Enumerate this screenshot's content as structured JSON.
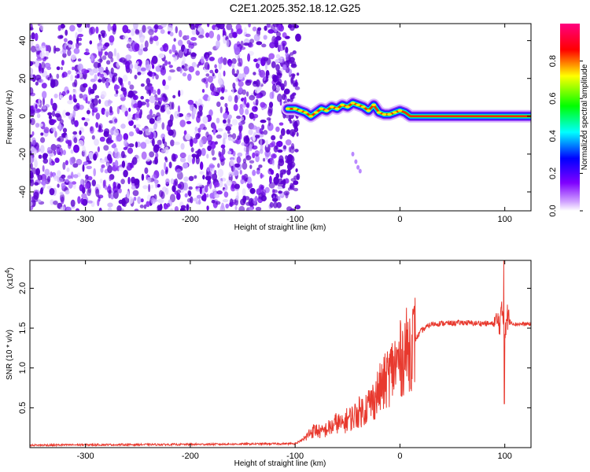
{
  "title": "C2E1.2025.352.18.12.G25",
  "chart_data": [
    {
      "type": "heatmap",
      "xlabel": "Height of straight line (km)",
      "ylabel": "Frequency (Hz)",
      "xlim": [
        -353,
        125
      ],
      "ylim": [
        -50,
        49
      ],
      "x_ticks": [
        -300,
        -200,
        -100,
        0,
        100
      ],
      "x_tick_labels": [
        "-300",
        "-200",
        "-100",
        "0",
        "100"
      ],
      "y_ticks": [
        -40,
        -20,
        0,
        20,
        40
      ],
      "y_tick_labels": [
        "-40",
        "-20",
        "0",
        "20",
        "40"
      ],
      "noise_region_x": [
        -353,
        -97
      ],
      "ridge": {
        "x": [
          -107,
          -100,
          -95,
          -90,
          -85,
          -80,
          -75,
          -70,
          -65,
          -60,
          -55,
          -50,
          -45,
          -40,
          -35,
          -30,
          -25,
          -20,
          -15,
          -10,
          -5,
          0,
          5,
          10,
          20,
          40,
          60,
          80,
          95,
          100,
          110,
          125
        ],
        "y": [
          4,
          4,
          3,
          2,
          0,
          2,
          4,
          3,
          5,
          4,
          6,
          5,
          7,
          6,
          5,
          3,
          6,
          2,
          1,
          1,
          2,
          3,
          2,
          0,
          0,
          0,
          0,
          0,
          0,
          0,
          0,
          0
        ]
      },
      "streak": {
        "x": [
          -45,
          -42,
          -40,
          -38
        ],
        "y": [
          -20,
          -24,
          -27,
          -29
        ]
      },
      "colorbar": {
        "label": "Normalized spectral amplitude",
        "ticks": [
          0.0,
          0.2,
          0.4,
          0.6,
          0.8
        ],
        "tick_labels": [
          "0.0",
          "0.2",
          "0.4",
          "0.6",
          "0.8"
        ],
        "range": [
          0,
          1
        ],
        "colors": [
          "#ffffff",
          "#7f00ff",
          "#0000ff",
          "#00ffff",
          "#00ff00",
          "#ffff00",
          "#ff0000",
          "#ff0080"
        ]
      }
    },
    {
      "type": "line",
      "xlabel": "Height of straight line (km)",
      "ylabel": "SNR (10 * v/v)",
      "y_multiplier": "(x10",
      "y_multiplier_exp": "4",
      "y_multiplier_close": ")",
      "xlim": [
        -353,
        125
      ],
      "ylim": [
        0,
        23500
      ],
      "x_ticks": [
        -300,
        -200,
        -100,
        0,
        100
      ],
      "x_tick_labels": [
        "-300",
        "-200",
        "-100",
        "0",
        "100"
      ],
      "y_ticks": [
        5000,
        10000,
        15000,
        20000
      ],
      "y_tick_labels": [
        "0.5",
        "1.0",
        "1.5",
        "2.0"
      ],
      "series": [
        {
          "color": "#e8392e",
          "x": [
            -353,
            -300,
            -200,
            -100,
            -90,
            -85,
            -80,
            -75,
            -70,
            -65,
            -60,
            -55,
            -50,
            -45,
            -40,
            -35,
            -30,
            -25,
            -20,
            -15,
            -10,
            -5,
            0,
            5,
            10,
            15,
            20,
            25,
            30,
            40,
            50,
            60,
            70,
            80,
            90,
            95,
            98,
            100,
            102,
            105,
            110,
            125
          ],
          "y": [
            300,
            350,
            400,
            500,
            1200,
            2000,
            2200,
            1900,
            2300,
            2600,
            3200,
            2800,
            3600,
            3800,
            4400,
            4700,
            5400,
            6000,
            7200,
            8000,
            9300,
            10200,
            11000,
            12000,
            12700,
            13600,
            14600,
            15100,
            15500,
            15600,
            15600,
            15700,
            15600,
            15600,
            15500,
            15800,
            17000,
            15000,
            16500,
            15800,
            15500,
            15500
          ]
        }
      ]
    }
  ]
}
